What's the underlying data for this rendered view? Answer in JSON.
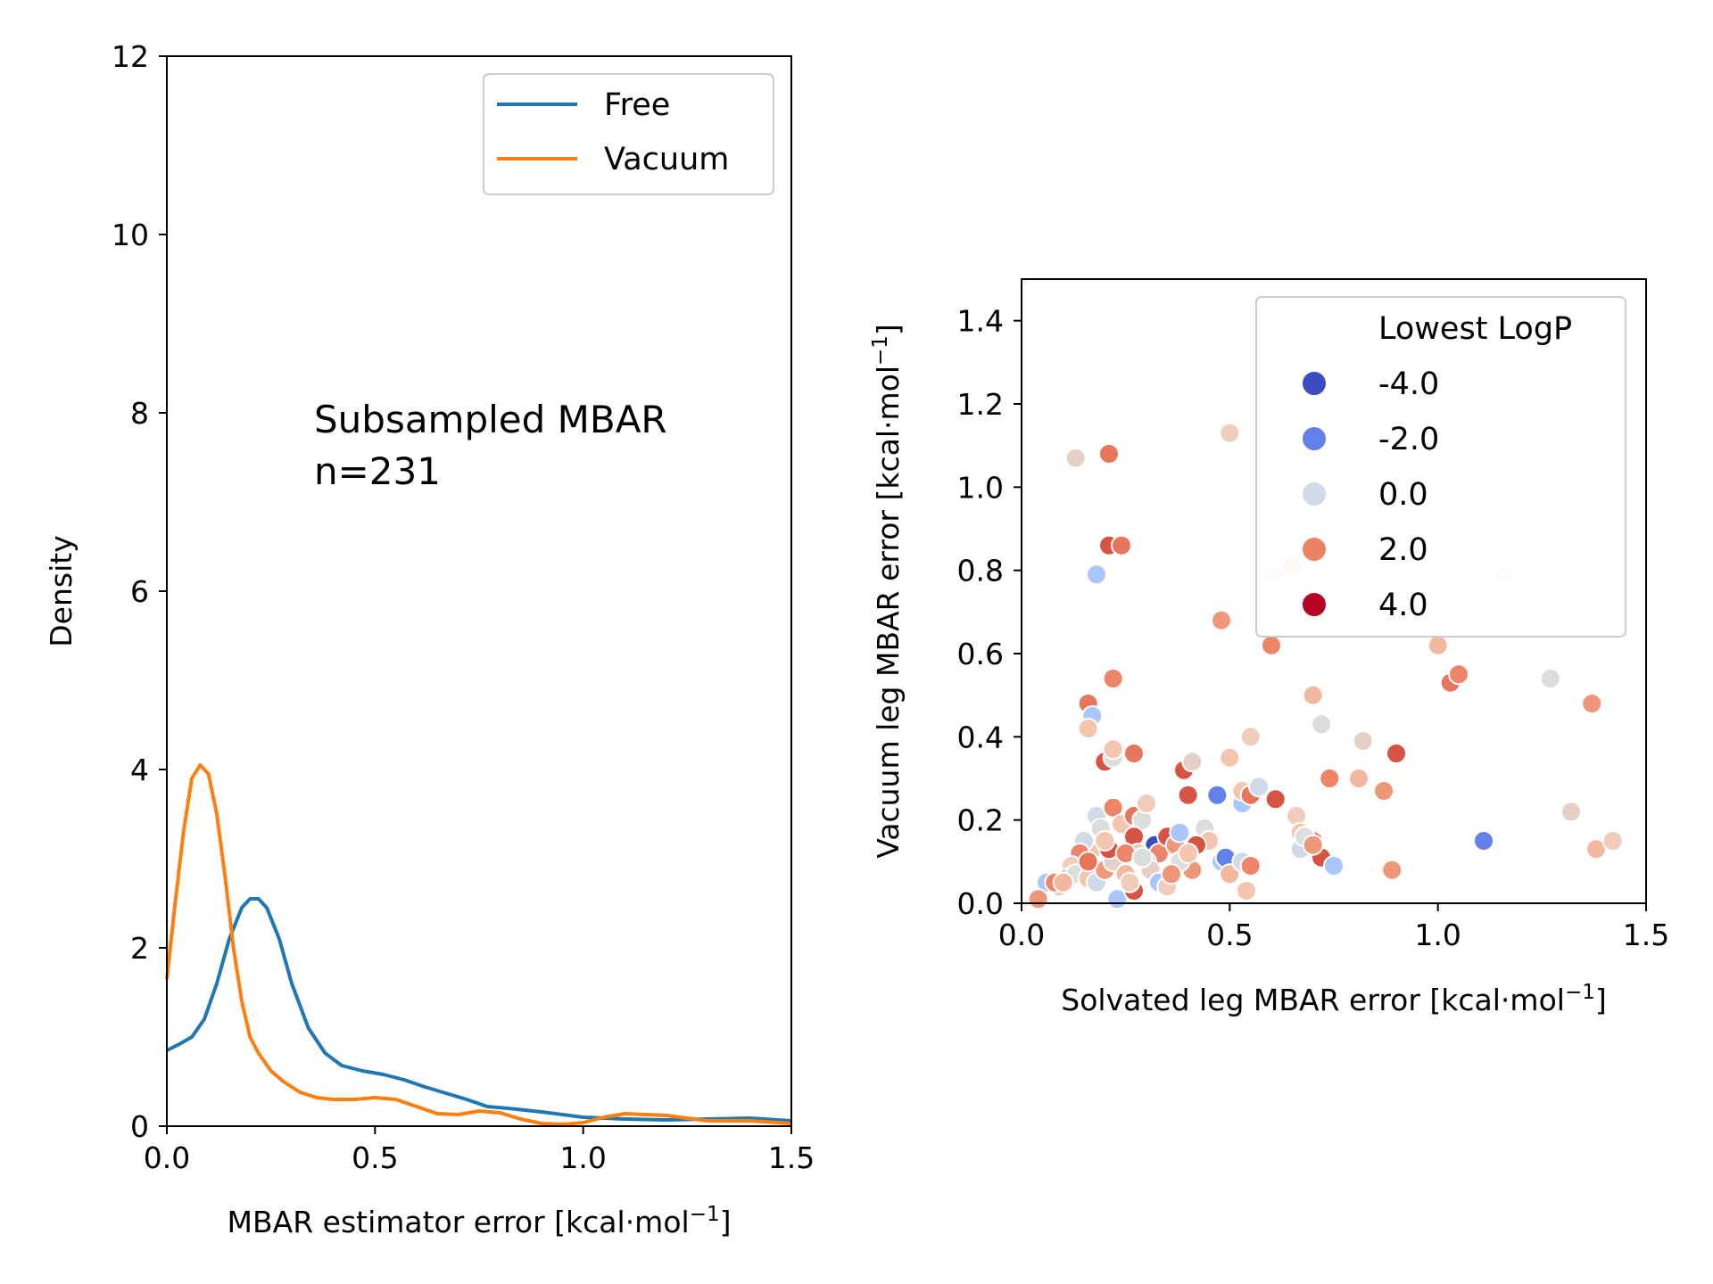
{
  "chart_data": [
    {
      "type": "line",
      "panel": "left",
      "xlabel_main": "MBAR estimator error [kcal·mol",
      "xlabel_sup": "−1",
      "xlabel_end": "]",
      "ylabel": "Density",
      "xlim": [
        0,
        1.5
      ],
      "ylim": [
        0,
        12
      ],
      "xticks": [
        "0.0",
        "0.5",
        "1.0",
        "1.5"
      ],
      "yticks": [
        "0",
        "2",
        "4",
        "6",
        "8",
        "10",
        "12"
      ],
      "annotation": [
        "Subsampled MBAR",
        "n=231"
      ],
      "legend": {
        "placement": "top-right",
        "entries": [
          "Free",
          "Vacuum"
        ]
      },
      "series": [
        {
          "name": "Free",
          "color": "#1f77b4",
          "x": [
            0.0,
            0.03,
            0.06,
            0.09,
            0.12,
            0.15,
            0.18,
            0.2,
            0.22,
            0.24,
            0.27,
            0.3,
            0.34,
            0.38,
            0.42,
            0.47,
            0.52,
            0.57,
            0.62,
            0.67,
            0.72,
            0.77,
            0.82,
            0.9,
            1.0,
            1.1,
            1.2,
            1.3,
            1.4,
            1.5
          ],
          "y": [
            0.85,
            0.92,
            1.0,
            1.2,
            1.6,
            2.1,
            2.45,
            2.55,
            2.55,
            2.45,
            2.1,
            1.6,
            1.1,
            0.82,
            0.68,
            0.62,
            0.58,
            0.52,
            0.44,
            0.37,
            0.3,
            0.22,
            0.2,
            0.16,
            0.1,
            0.08,
            0.07,
            0.08,
            0.09,
            0.06
          ]
        },
        {
          "name": "Vacuum",
          "color": "#ff7f0e",
          "x": [
            0.0,
            0.02,
            0.04,
            0.06,
            0.08,
            0.1,
            0.12,
            0.14,
            0.16,
            0.18,
            0.2,
            0.22,
            0.25,
            0.28,
            0.32,
            0.36,
            0.4,
            0.45,
            0.5,
            0.55,
            0.6,
            0.65,
            0.7,
            0.75,
            0.8,
            0.85,
            0.9,
            0.95,
            1.0,
            1.05,
            1.1,
            1.2,
            1.3,
            1.4,
            1.5
          ],
          "y": [
            1.65,
            2.5,
            3.3,
            3.9,
            4.05,
            3.95,
            3.5,
            2.8,
            2.0,
            1.4,
            1.0,
            0.82,
            0.62,
            0.5,
            0.38,
            0.32,
            0.3,
            0.3,
            0.32,
            0.3,
            0.22,
            0.14,
            0.13,
            0.17,
            0.15,
            0.08,
            0.03,
            0.02,
            0.04,
            0.1,
            0.14,
            0.12,
            0.06,
            0.06,
            0.03
          ]
        }
      ]
    },
    {
      "type": "scatter",
      "panel": "right",
      "xlabel_main": "Solvated leg MBAR error [kcal·mol",
      "xlabel_sup": "−1",
      "xlabel_end": "]",
      "ylabel_main": "Vacuum leg MBAR error [kcal·mol",
      "ylabel_sup": "−1",
      "ylabel_end": "]",
      "xlim": [
        0,
        1.5
      ],
      "ylim": [
        0,
        1.5
      ],
      "xticks": [
        "0.0",
        "0.5",
        "1.0",
        "1.5"
      ],
      "yticks": [
        "0.0",
        "0.2",
        "0.4",
        "0.6",
        "0.8",
        "1.0",
        "1.2",
        "1.4"
      ],
      "legend": {
        "placement": "top-right",
        "title": "Lowest LogP",
        "entries": [
          {
            "label": "-4.0",
            "color": "#3b4cc0"
          },
          {
            "label": "-2.0",
            "color": "#6282ea"
          },
          {
            "label": "0.0",
            "color": "#d1dae9"
          },
          {
            "label": "2.0",
            "color": "#ed8366"
          },
          {
            "label": "4.0",
            "color": "#b40426"
          }
        ]
      },
      "points": [
        [
          0.13,
          1.07,
          "#e6d0c5"
        ],
        [
          0.21,
          1.08,
          "#e8765c"
        ],
        [
          0.5,
          1.13,
          "#f0cdbb"
        ],
        [
          0.21,
          0.86,
          "#d75445"
        ],
        [
          0.24,
          0.86,
          "#e8765c"
        ],
        [
          0.18,
          0.79,
          "#aac7fd"
        ],
        [
          0.6,
          0.79,
          "#f7e0d5"
        ],
        [
          0.65,
          0.81,
          "#f4d7c6"
        ],
        [
          1.16,
          0.79,
          "#f9ebe4"
        ],
        [
          0.48,
          0.68,
          "#ee9879"
        ],
        [
          0.6,
          0.62,
          "#ee8468"
        ],
        [
          1.0,
          0.62,
          "#f2b9a0"
        ],
        [
          1.03,
          0.53,
          "#e8765c"
        ],
        [
          1.05,
          0.55,
          "#ee8468"
        ],
        [
          1.27,
          0.54,
          "#dcdddd"
        ],
        [
          1.37,
          0.48,
          "#ee9879"
        ],
        [
          0.22,
          0.54,
          "#ee8468"
        ],
        [
          0.16,
          0.48,
          "#e8765c"
        ],
        [
          0.17,
          0.45,
          "#aac7fd"
        ],
        [
          0.16,
          0.42,
          "#f4c6af"
        ],
        [
          0.7,
          0.5,
          "#f2b9a0"
        ],
        [
          0.72,
          0.43,
          "#dcdddd"
        ],
        [
          0.82,
          0.39,
          "#e6d0c5"
        ],
        [
          0.55,
          0.4,
          "#f0cdbb"
        ],
        [
          0.9,
          0.36,
          "#d75445"
        ],
        [
          0.2,
          0.34,
          "#d75445"
        ],
        [
          0.22,
          0.35,
          "#dcdddd"
        ],
        [
          0.22,
          0.37,
          "#f4c6af"
        ],
        [
          0.27,
          0.36,
          "#e8765c"
        ],
        [
          0.39,
          0.32,
          "#d75445"
        ],
        [
          0.41,
          0.34,
          "#e6d0c5"
        ],
        [
          0.5,
          0.35,
          "#f4c6af"
        ],
        [
          0.74,
          0.3,
          "#ee8468"
        ],
        [
          0.81,
          0.3,
          "#f2b9a0"
        ],
        [
          0.87,
          0.27,
          "#ee9879"
        ],
        [
          0.4,
          0.26,
          "#d75445"
        ],
        [
          0.47,
          0.26,
          "#6282ea"
        ],
        [
          0.53,
          0.24,
          "#aac7fd"
        ],
        [
          0.53,
          0.27,
          "#f4c6af"
        ],
        [
          0.55,
          0.26,
          "#e8765c"
        ],
        [
          0.57,
          0.28,
          "#d1dae9"
        ],
        [
          0.61,
          0.25,
          "#d75445"
        ],
        [
          0.66,
          0.21,
          "#f0cdbb"
        ],
        [
          0.67,
          0.17,
          "#f4c6af"
        ],
        [
          0.7,
          0.15,
          "#ee8468"
        ],
        [
          0.72,
          0.11,
          "#d75445"
        ],
        [
          0.75,
          0.09,
          "#aac7fd"
        ],
        [
          0.89,
          0.08,
          "#ee9879"
        ],
        [
          1.11,
          0.15,
          "#6282ea"
        ],
        [
          1.32,
          0.22,
          "#e6d0c5"
        ],
        [
          1.38,
          0.13,
          "#f2b9a0"
        ],
        [
          1.42,
          0.15,
          "#f0cdbb"
        ],
        [
          0.18,
          0.21,
          "#d1dae9"
        ],
        [
          0.19,
          0.18,
          "#dcdddd"
        ],
        [
          0.22,
          0.23,
          "#ee8468"
        ],
        [
          0.24,
          0.19,
          "#f4c6af"
        ],
        [
          0.27,
          0.21,
          "#e8765c"
        ],
        [
          0.29,
          0.2,
          "#dcdddd"
        ],
        [
          0.3,
          0.24,
          "#f0cdbb"
        ],
        [
          0.27,
          0.16,
          "#d75445"
        ],
        [
          0.32,
          0.14,
          "#3b4cc0"
        ],
        [
          0.33,
          0.12,
          "#ee8468"
        ],
        [
          0.3,
          0.1,
          "#dcdddd"
        ],
        [
          0.35,
          0.16,
          "#d75445"
        ],
        [
          0.37,
          0.14,
          "#ee9879"
        ],
        [
          0.38,
          0.17,
          "#aac7fd"
        ],
        [
          0.41,
          0.08,
          "#ee9879"
        ],
        [
          0.44,
          0.18,
          "#dcdddd"
        ],
        [
          0.45,
          0.15,
          "#f4c6af"
        ],
        [
          0.48,
          0.1,
          "#aac7fd"
        ],
        [
          0.49,
          0.11,
          "#6282ea"
        ],
        [
          0.5,
          0.07,
          "#f2b9a0"
        ],
        [
          0.53,
          0.1,
          "#d1dae9"
        ],
        [
          0.54,
          0.03,
          "#f4c6af"
        ],
        [
          0.55,
          0.09,
          "#ee8468"
        ],
        [
          0.42,
          0.14,
          "#d75445"
        ],
        [
          0.17,
          0.13,
          "#f4c6af"
        ],
        [
          0.15,
          0.15,
          "#d1dae9"
        ],
        [
          0.14,
          0.12,
          "#ee8468"
        ],
        [
          0.12,
          0.09,
          "#f0cdbb"
        ],
        [
          0.11,
          0.06,
          "#aac7fd"
        ],
        [
          0.09,
          0.04,
          "#f0cdbb"
        ],
        [
          0.06,
          0.05,
          "#aac7fd"
        ],
        [
          0.04,
          0.01,
          "#ee9879"
        ],
        [
          0.08,
          0.05,
          "#ee8468"
        ],
        [
          0.13,
          0.07,
          "#dcdddd"
        ],
        [
          0.16,
          0.06,
          "#f4c6af"
        ],
        [
          0.18,
          0.05,
          "#d1dae9"
        ],
        [
          0.2,
          0.08,
          "#ee9879"
        ],
        [
          0.22,
          0.1,
          "#e6d0c5"
        ],
        [
          0.23,
          0.01,
          "#aac7fd"
        ],
        [
          0.25,
          0.07,
          "#f2b9a0"
        ],
        [
          0.27,
          0.03,
          "#d75445"
        ],
        [
          0.28,
          0.12,
          "#f4c6af"
        ],
        [
          0.31,
          0.08,
          "#e6d0c5"
        ],
        [
          0.33,
          0.05,
          "#aac7fd"
        ],
        [
          0.35,
          0.04,
          "#f0cdbb"
        ],
        [
          0.38,
          0.1,
          "#dcdddd"
        ],
        [
          0.4,
          0.12,
          "#f4c6af"
        ],
        [
          0.36,
          0.07,
          "#ee9879"
        ],
        [
          0.21,
          0.13,
          "#d75445"
        ],
        [
          0.2,
          0.15,
          "#f4c6af"
        ],
        [
          0.25,
          0.12,
          "#ee8468"
        ],
        [
          0.29,
          0.11,
          "#dcdddd"
        ],
        [
          0.67,
          0.13,
          "#d1dae9"
        ],
        [
          0.68,
          0.16,
          "#dcdddd"
        ],
        [
          0.7,
          0.14,
          "#ee9879"
        ],
        [
          0.16,
          0.1,
          "#e8765c"
        ],
        [
          0.1,
          0.05,
          "#f2b9a0"
        ],
        [
          0.26,
          0.05,
          "#f0cdbb"
        ]
      ]
    }
  ]
}
